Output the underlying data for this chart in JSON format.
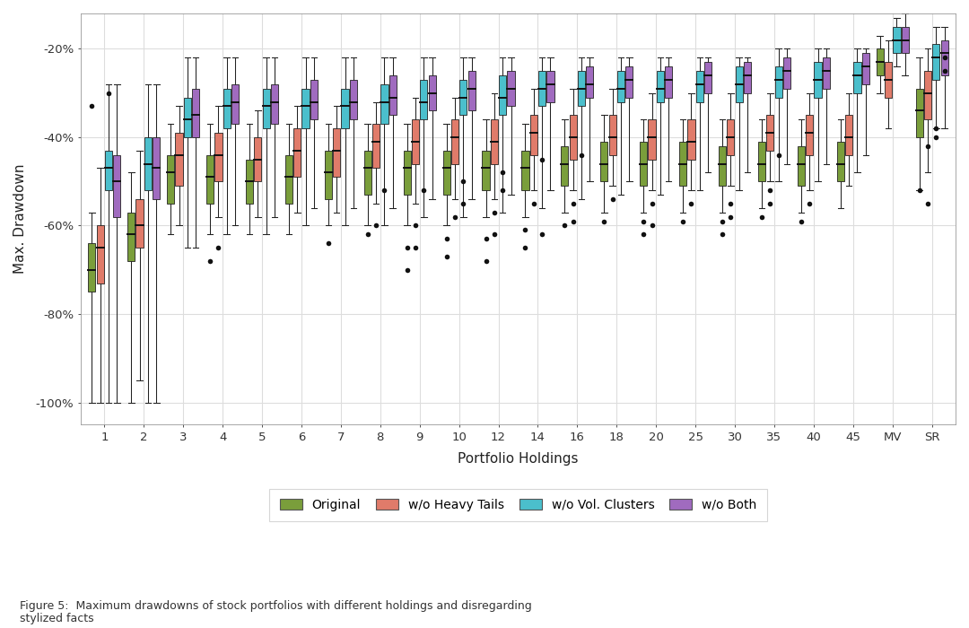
{
  "categories": [
    "1",
    "2",
    "3",
    "4",
    "5",
    "6",
    "7",
    "8",
    "9",
    "10",
    "12",
    "14",
    "16",
    "18",
    "20",
    "25",
    "30",
    "35",
    "40",
    "45",
    "MV",
    "SR"
  ],
  "colors": {
    "original": "#7a9e3b",
    "wo_heavy": "#e07b6a",
    "wo_vol": "#4bbfcc",
    "wo_both": "#a06bbf"
  },
  "ylabel": "Max. Drawdown",
  "xlabel": "Portfolio Holdings",
  "yticks": [
    -1.0,
    -0.8,
    -0.6,
    -0.4,
    -0.2
  ],
  "ytick_labels": [
    "-100%",
    "-80%",
    "-60%",
    "-40%",
    "-20%"
  ],
  "ylim": [
    -1.05,
    -0.12
  ],
  "legend_labels": [
    "Original",
    "w/o Heavy Tails",
    "w/o Vol. Clusters",
    "w/o Both"
  ],
  "figure_caption": "Figure 5:  Maximum drawdowns of stock portfolios with different holdings and disregarding\nstylized facts",
  "background_color": "#ffffff",
  "grid_color": "#dddddd",
  "series": {
    "original": {
      "1": {
        "whislo": -1.0,
        "q1": -0.75,
        "med": -0.7,
        "q3": -0.64,
        "whishi": -0.57,
        "fliers": [
          -0.33
        ]
      },
      "2": {
        "whislo": -1.0,
        "q1": -0.68,
        "med": -0.62,
        "q3": -0.57,
        "whishi": -0.48,
        "fliers": []
      },
      "3": {
        "whislo": -0.62,
        "q1": -0.55,
        "med": -0.48,
        "q3": -0.44,
        "whishi": -0.37,
        "fliers": []
      },
      "4": {
        "whislo": -0.62,
        "q1": -0.55,
        "med": -0.49,
        "q3": -0.44,
        "whishi": -0.37,
        "fliers": [
          -0.68
        ]
      },
      "5": {
        "whislo": -0.62,
        "q1": -0.55,
        "med": -0.5,
        "q3": -0.45,
        "whishi": -0.37,
        "fliers": []
      },
      "6": {
        "whislo": -0.62,
        "q1": -0.55,
        "med": -0.49,
        "q3": -0.44,
        "whishi": -0.37,
        "fliers": []
      },
      "7": {
        "whislo": -0.6,
        "q1": -0.54,
        "med": -0.48,
        "q3": -0.43,
        "whishi": -0.37,
        "fliers": [
          -0.64
        ]
      },
      "8": {
        "whislo": -0.6,
        "q1": -0.53,
        "med": -0.47,
        "q3": -0.43,
        "whishi": -0.37,
        "fliers": [
          -0.62
        ]
      },
      "9": {
        "whislo": -0.6,
        "q1": -0.53,
        "med": -0.47,
        "q3": -0.43,
        "whishi": -0.37,
        "fliers": [
          -0.65,
          -0.7
        ]
      },
      "10": {
        "whislo": -0.6,
        "q1": -0.53,
        "med": -0.47,
        "q3": -0.43,
        "whishi": -0.37,
        "fliers": [
          -0.63,
          -0.67
        ]
      },
      "12": {
        "whislo": -0.58,
        "q1": -0.52,
        "med": -0.47,
        "q3": -0.43,
        "whishi": -0.36,
        "fliers": [
          -0.63,
          -0.68
        ]
      },
      "14": {
        "whislo": -0.58,
        "q1": -0.52,
        "med": -0.47,
        "q3": -0.43,
        "whishi": -0.37,
        "fliers": [
          -0.61,
          -0.65
        ]
      },
      "16": {
        "whislo": -0.57,
        "q1": -0.51,
        "med": -0.46,
        "q3": -0.42,
        "whishi": -0.36,
        "fliers": [
          -0.6
        ]
      },
      "18": {
        "whislo": -0.57,
        "q1": -0.5,
        "med": -0.46,
        "q3": -0.41,
        "whishi": -0.35,
        "fliers": [
          -0.59
        ]
      },
      "20": {
        "whislo": -0.57,
        "q1": -0.51,
        "med": -0.46,
        "q3": -0.41,
        "whishi": -0.36,
        "fliers": [
          -0.59,
          -0.62
        ]
      },
      "25": {
        "whislo": -0.57,
        "q1": -0.51,
        "med": -0.46,
        "q3": -0.41,
        "whishi": -0.36,
        "fliers": [
          -0.59
        ]
      },
      "30": {
        "whislo": -0.57,
        "q1": -0.51,
        "med": -0.46,
        "q3": -0.42,
        "whishi": -0.36,
        "fliers": [
          -0.59,
          -0.62
        ]
      },
      "35": {
        "whislo": -0.56,
        "q1": -0.5,
        "med": -0.46,
        "q3": -0.41,
        "whishi": -0.36,
        "fliers": [
          -0.58
        ]
      },
      "40": {
        "whislo": -0.57,
        "q1": -0.51,
        "med": -0.46,
        "q3": -0.42,
        "whishi": -0.36,
        "fliers": [
          -0.59
        ]
      },
      "45": {
        "whislo": -0.56,
        "q1": -0.5,
        "med": -0.46,
        "q3": -0.41,
        "whishi": -0.36,
        "fliers": []
      },
      "MV": {
        "whislo": -0.3,
        "q1": -0.26,
        "med": -0.23,
        "q3": -0.2,
        "whishi": -0.17,
        "fliers": []
      },
      "SR": {
        "whislo": -0.52,
        "q1": -0.4,
        "med": -0.34,
        "q3": -0.29,
        "whishi": -0.22,
        "fliers": [
          -0.52
        ]
      }
    },
    "wo_heavy": {
      "1": {
        "whislo": -1.0,
        "q1": -0.73,
        "med": -0.65,
        "q3": -0.6,
        "whishi": -0.47,
        "fliers": []
      },
      "2": {
        "whislo": -0.95,
        "q1": -0.65,
        "med": -0.6,
        "q3": -0.54,
        "whishi": -0.43,
        "fliers": []
      },
      "3": {
        "whislo": -0.6,
        "q1": -0.51,
        "med": -0.44,
        "q3": -0.39,
        "whishi": -0.33,
        "fliers": []
      },
      "4": {
        "whislo": -0.58,
        "q1": -0.5,
        "med": -0.44,
        "q3": -0.39,
        "whishi": -0.33,
        "fliers": [
          -0.65
        ]
      },
      "5": {
        "whislo": -0.58,
        "q1": -0.5,
        "med": -0.45,
        "q3": -0.4,
        "whishi": -0.34,
        "fliers": []
      },
      "6": {
        "whislo": -0.57,
        "q1": -0.49,
        "med": -0.43,
        "q3": -0.38,
        "whishi": -0.33,
        "fliers": []
      },
      "7": {
        "whislo": -0.57,
        "q1": -0.49,
        "med": -0.43,
        "q3": -0.38,
        "whishi": -0.33,
        "fliers": []
      },
      "8": {
        "whislo": -0.55,
        "q1": -0.47,
        "med": -0.41,
        "q3": -0.37,
        "whishi": -0.32,
        "fliers": [
          -0.6
        ]
      },
      "9": {
        "whislo": -0.55,
        "q1": -0.46,
        "med": -0.41,
        "q3": -0.36,
        "whishi": -0.31,
        "fliers": [
          -0.6,
          -0.65
        ]
      },
      "10": {
        "whislo": -0.54,
        "q1": -0.46,
        "med": -0.4,
        "q3": -0.36,
        "whishi": -0.31,
        "fliers": [
          -0.58
        ]
      },
      "12": {
        "whislo": -0.54,
        "q1": -0.46,
        "med": -0.41,
        "q3": -0.36,
        "whishi": -0.3,
        "fliers": [
          -0.57,
          -0.62
        ]
      },
      "14": {
        "whislo": -0.52,
        "q1": -0.44,
        "med": -0.39,
        "q3": -0.35,
        "whishi": -0.29,
        "fliers": [
          -0.55
        ]
      },
      "16": {
        "whislo": -0.52,
        "q1": -0.45,
        "med": -0.4,
        "q3": -0.35,
        "whishi": -0.29,
        "fliers": [
          -0.55,
          -0.59
        ]
      },
      "18": {
        "whislo": -0.51,
        "q1": -0.44,
        "med": -0.4,
        "q3": -0.35,
        "whishi": -0.29,
        "fliers": [
          -0.54
        ]
      },
      "20": {
        "whislo": -0.52,
        "q1": -0.45,
        "med": -0.4,
        "q3": -0.36,
        "whishi": -0.3,
        "fliers": [
          -0.55,
          -0.6
        ]
      },
      "25": {
        "whislo": -0.52,
        "q1": -0.45,
        "med": -0.41,
        "q3": -0.36,
        "whishi": -0.3,
        "fliers": [
          -0.55
        ]
      },
      "30": {
        "whislo": -0.51,
        "q1": -0.44,
        "med": -0.4,
        "q3": -0.36,
        "whishi": -0.3,
        "fliers": [
          -0.55,
          -0.58
        ]
      },
      "35": {
        "whislo": -0.5,
        "q1": -0.43,
        "med": -0.39,
        "q3": -0.35,
        "whishi": -0.3,
        "fliers": [
          -0.52,
          -0.55
        ]
      },
      "40": {
        "whislo": -0.52,
        "q1": -0.44,
        "med": -0.39,
        "q3": -0.35,
        "whishi": -0.3,
        "fliers": [
          -0.55
        ]
      },
      "45": {
        "whislo": -0.51,
        "q1": -0.44,
        "med": -0.4,
        "q3": -0.35,
        "whishi": -0.3,
        "fliers": []
      },
      "MV": {
        "whislo": -0.38,
        "q1": -0.31,
        "med": -0.27,
        "q3": -0.23,
        "whishi": -0.18,
        "fliers": []
      },
      "SR": {
        "whislo": -0.48,
        "q1": -0.36,
        "med": -0.3,
        "q3": -0.25,
        "whishi": -0.2,
        "fliers": [
          -0.42,
          -0.55
        ]
      }
    },
    "wo_vol": {
      "1": {
        "whislo": -1.0,
        "q1": -0.52,
        "med": -0.47,
        "q3": -0.43,
        "whishi": -0.28,
        "fliers": [
          -0.3
        ]
      },
      "2": {
        "whislo": -1.0,
        "q1": -0.52,
        "med": -0.46,
        "q3": -0.4,
        "whishi": -0.28,
        "fliers": []
      },
      "3": {
        "whislo": -0.65,
        "q1": -0.4,
        "med": -0.36,
        "q3": -0.31,
        "whishi": -0.22,
        "fliers": []
      },
      "4": {
        "whislo": -0.62,
        "q1": -0.38,
        "med": -0.33,
        "q3": -0.29,
        "whishi": -0.22,
        "fliers": []
      },
      "5": {
        "whislo": -0.62,
        "q1": -0.38,
        "med": -0.33,
        "q3": -0.29,
        "whishi": -0.22,
        "fliers": []
      },
      "6": {
        "whislo": -0.6,
        "q1": -0.38,
        "med": -0.33,
        "q3": -0.29,
        "whishi": -0.22,
        "fliers": []
      },
      "7": {
        "whislo": -0.6,
        "q1": -0.38,
        "med": -0.33,
        "q3": -0.29,
        "whishi": -0.22,
        "fliers": []
      },
      "8": {
        "whislo": -0.6,
        "q1": -0.37,
        "med": -0.32,
        "q3": -0.28,
        "whishi": -0.22,
        "fliers": [
          -0.52
        ]
      },
      "9": {
        "whislo": -0.58,
        "q1": -0.36,
        "med": -0.32,
        "q3": -0.27,
        "whishi": -0.22,
        "fliers": [
          -0.52
        ]
      },
      "10": {
        "whislo": -0.58,
        "q1": -0.35,
        "med": -0.31,
        "q3": -0.27,
        "whishi": -0.22,
        "fliers": [
          -0.5,
          -0.55
        ]
      },
      "12": {
        "whislo": -0.57,
        "q1": -0.35,
        "med": -0.31,
        "q3": -0.26,
        "whishi": -0.22,
        "fliers": [
          -0.48,
          -0.52
        ]
      },
      "14": {
        "whislo": -0.56,
        "q1": -0.33,
        "med": -0.29,
        "q3": -0.25,
        "whishi": -0.22,
        "fliers": [
          -0.45,
          -0.62
        ]
      },
      "16": {
        "whislo": -0.54,
        "q1": -0.33,
        "med": -0.29,
        "q3": -0.25,
        "whishi": -0.22,
        "fliers": [
          -0.44
        ]
      },
      "18": {
        "whislo": -0.53,
        "q1": -0.32,
        "med": -0.29,
        "q3": -0.25,
        "whishi": -0.22,
        "fliers": []
      },
      "20": {
        "whislo": -0.53,
        "q1": -0.32,
        "med": -0.29,
        "q3": -0.25,
        "whishi": -0.22,
        "fliers": []
      },
      "25": {
        "whislo": -0.52,
        "q1": -0.32,
        "med": -0.28,
        "q3": -0.25,
        "whishi": -0.22,
        "fliers": []
      },
      "30": {
        "whislo": -0.52,
        "q1": -0.32,
        "med": -0.28,
        "q3": -0.24,
        "whishi": -0.22,
        "fliers": []
      },
      "35": {
        "whislo": -0.5,
        "q1": -0.31,
        "med": -0.27,
        "q3": -0.24,
        "whishi": -0.2,
        "fliers": [
          -0.44
        ]
      },
      "40": {
        "whislo": -0.5,
        "q1": -0.31,
        "med": -0.27,
        "q3": -0.23,
        "whishi": -0.2,
        "fliers": []
      },
      "45": {
        "whislo": -0.48,
        "q1": -0.3,
        "med": -0.26,
        "q3": -0.23,
        "whishi": -0.2,
        "fliers": []
      },
      "MV": {
        "whislo": -0.24,
        "q1": -0.21,
        "med": -0.18,
        "q3": -0.15,
        "whishi": -0.13,
        "fliers": []
      },
      "SR": {
        "whislo": -0.38,
        "q1": -0.27,
        "med": -0.22,
        "q3": -0.19,
        "whishi": -0.15,
        "fliers": [
          -0.38,
          -0.4
        ]
      }
    },
    "wo_both": {
      "1": {
        "whislo": -1.0,
        "q1": -0.58,
        "med": -0.5,
        "q3": -0.44,
        "whishi": -0.28,
        "fliers": []
      },
      "2": {
        "whislo": -1.0,
        "q1": -0.54,
        "med": -0.47,
        "q3": -0.4,
        "whishi": -0.28,
        "fliers": []
      },
      "3": {
        "whislo": -0.65,
        "q1": -0.4,
        "med": -0.35,
        "q3": -0.29,
        "whishi": -0.22,
        "fliers": []
      },
      "4": {
        "whislo": -0.6,
        "q1": -0.37,
        "med": -0.32,
        "q3": -0.28,
        "whishi": -0.22,
        "fliers": []
      },
      "5": {
        "whislo": -0.58,
        "q1": -0.37,
        "med": -0.32,
        "q3": -0.28,
        "whishi": -0.22,
        "fliers": []
      },
      "6": {
        "whislo": -0.56,
        "q1": -0.36,
        "med": -0.32,
        "q3": -0.27,
        "whishi": -0.22,
        "fliers": []
      },
      "7": {
        "whislo": -0.56,
        "q1": -0.36,
        "med": -0.32,
        "q3": -0.27,
        "whishi": -0.22,
        "fliers": []
      },
      "8": {
        "whislo": -0.56,
        "q1": -0.35,
        "med": -0.31,
        "q3": -0.26,
        "whishi": -0.22,
        "fliers": []
      },
      "9": {
        "whislo": -0.54,
        "q1": -0.34,
        "med": -0.3,
        "q3": -0.26,
        "whishi": -0.22,
        "fliers": []
      },
      "10": {
        "whislo": -0.54,
        "q1": -0.34,
        "med": -0.29,
        "q3": -0.25,
        "whishi": -0.22,
        "fliers": []
      },
      "12": {
        "whislo": -0.53,
        "q1": -0.33,
        "med": -0.29,
        "q3": -0.25,
        "whishi": -0.22,
        "fliers": []
      },
      "14": {
        "whislo": -0.52,
        "q1": -0.32,
        "med": -0.28,
        "q3": -0.25,
        "whishi": -0.22,
        "fliers": []
      },
      "16": {
        "whislo": -0.5,
        "q1": -0.31,
        "med": -0.28,
        "q3": -0.24,
        "whishi": -0.22,
        "fliers": []
      },
      "18": {
        "whislo": -0.5,
        "q1": -0.31,
        "med": -0.27,
        "q3": -0.24,
        "whishi": -0.22,
        "fliers": []
      },
      "20": {
        "whislo": -0.5,
        "q1": -0.31,
        "med": -0.27,
        "q3": -0.24,
        "whishi": -0.22,
        "fliers": []
      },
      "25": {
        "whislo": -0.48,
        "q1": -0.3,
        "med": -0.26,
        "q3": -0.23,
        "whishi": -0.22,
        "fliers": []
      },
      "30": {
        "whislo": -0.48,
        "q1": -0.3,
        "med": -0.26,
        "q3": -0.23,
        "whishi": -0.22,
        "fliers": []
      },
      "35": {
        "whislo": -0.46,
        "q1": -0.29,
        "med": -0.25,
        "q3": -0.22,
        "whishi": -0.2,
        "fliers": []
      },
      "40": {
        "whislo": -0.46,
        "q1": -0.29,
        "med": -0.25,
        "q3": -0.22,
        "whishi": -0.2,
        "fliers": []
      },
      "45": {
        "whislo": -0.44,
        "q1": -0.28,
        "med": -0.24,
        "q3": -0.21,
        "whishi": -0.2,
        "fliers": []
      },
      "MV": {
        "whislo": -0.26,
        "q1": -0.21,
        "med": -0.18,
        "q3": -0.15,
        "whishi": -0.12,
        "fliers": []
      },
      "SR": {
        "whislo": -0.38,
        "q1": -0.26,
        "med": -0.21,
        "q3": -0.18,
        "whishi": -0.15,
        "fliers": [
          -0.22,
          -0.25
        ]
      }
    }
  }
}
